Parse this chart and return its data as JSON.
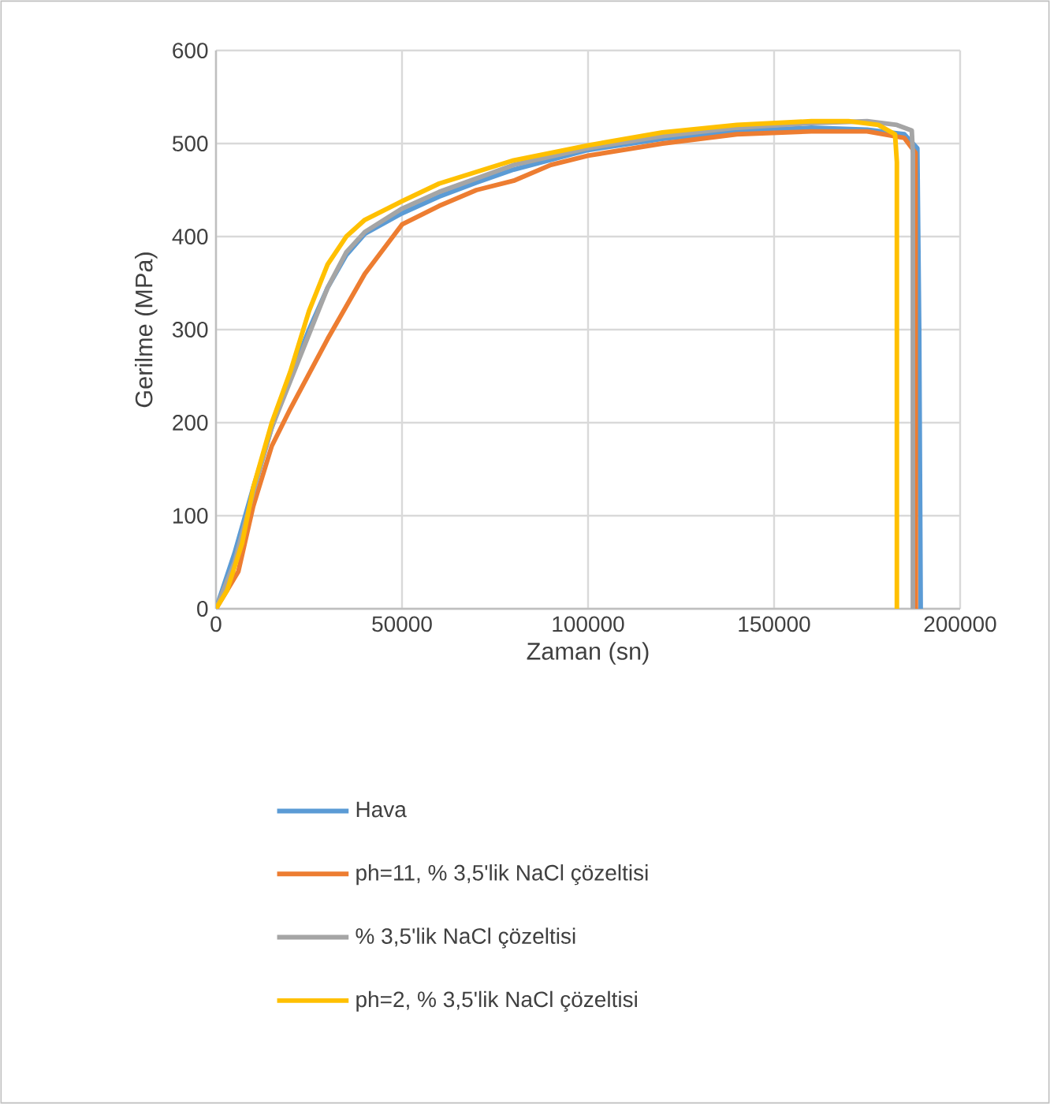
{
  "chart_data": {
    "type": "line",
    "xlabel": "Zaman (sn)",
    "ylabel": "Gerilme (MPa)",
    "xlim": [
      0,
      200000
    ],
    "ylim": [
      0,
      600
    ],
    "xticks": [
      0,
      50000,
      100000,
      150000,
      200000
    ],
    "yticks": [
      0,
      100,
      200,
      300,
      400,
      500,
      600
    ],
    "grid": true,
    "legend": "bottom",
    "series": [
      {
        "name": "Hava",
        "color": "#5b9bd5",
        "x": [
          0,
          5000,
          10000,
          15000,
          20000,
          25000,
          30000,
          35000,
          40000,
          50000,
          60000,
          70000,
          80000,
          100000,
          120000,
          140000,
          160000,
          175000,
          185000,
          188500,
          189000,
          189400
        ],
        "values": [
          0,
          60,
          130,
          195,
          250,
          300,
          345,
          380,
          403,
          425,
          443,
          458,
          472,
          493,
          505,
          513,
          517,
          515,
          510,
          495,
          300,
          0
        ]
      },
      {
        "name": "ph=11, % 3,5'lik NaCl çözeltisi",
        "color": "#ed7d31",
        "x": [
          0,
          3000,
          6000,
          10000,
          15000,
          20000,
          30000,
          40000,
          50000,
          60000,
          70000,
          80000,
          90000,
          100000,
          120000,
          140000,
          160000,
          175000,
          185000,
          188000,
          188100
        ],
        "values": [
          0,
          20,
          40,
          110,
          175,
          215,
          290,
          360,
          413,
          433,
          450,
          460,
          477,
          487,
          500,
          510,
          513,
          513,
          506,
          490,
          0
        ]
      },
      {
        "name": "% 3,5'lik NaCl çözeltisi",
        "color": "#a5a5a5",
        "x": [
          0,
          5000,
          10000,
          15000,
          20000,
          25000,
          30000,
          35000,
          40000,
          50000,
          60000,
          80000,
          100000,
          120000,
          140000,
          160000,
          175000,
          183000,
          187000,
          187300,
          187300
        ],
        "values": [
          0,
          50,
          125,
          195,
          245,
          295,
          345,
          383,
          405,
          430,
          448,
          477,
          495,
          508,
          517,
          522,
          524,
          520,
          514,
          490,
          0
        ]
      },
      {
        "name": "ph=2, % 3,5'lik NaCl çözeltisi",
        "color": "#ffc000",
        "x": [
          0,
          3000,
          7000,
          10000,
          15000,
          20000,
          25000,
          30000,
          35000,
          40000,
          50000,
          60000,
          80000,
          100000,
          120000,
          140000,
          160000,
          170000,
          178000,
          182500,
          183000,
          183000
        ],
        "values": [
          0,
          20,
          70,
          130,
          200,
          255,
          320,
          370,
          400,
          418,
          438,
          457,
          482,
          498,
          512,
          520,
          524,
          524,
          520,
          510,
          480,
          0
        ]
      }
    ]
  }
}
